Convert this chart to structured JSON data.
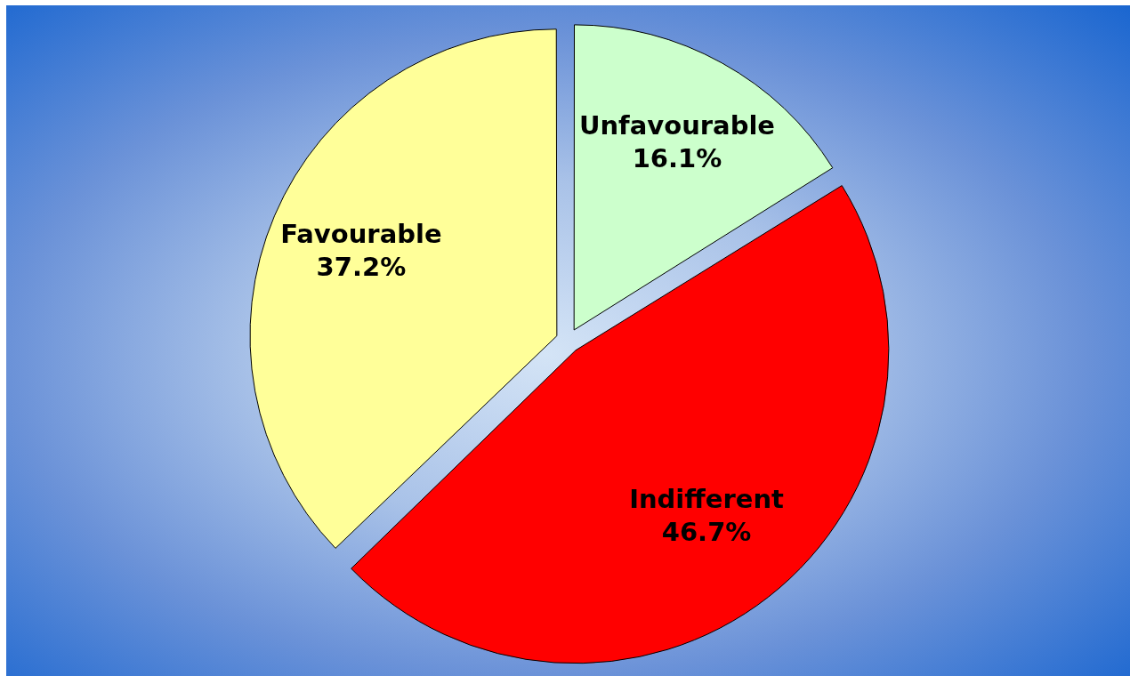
{
  "chart_data": {
    "type": "pie",
    "categories": [
      "Unfavourable",
      "Indifferent",
      "Favourable"
    ],
    "values": [
      16.1,
      46.7,
      37.2
    ],
    "colors": [
      "#ccffcc",
      "#ff0000",
      "#ffff99"
    ],
    "value_labels": [
      "16.1%",
      "46.7%",
      "37.2%"
    ],
    "legend": false
  }
}
